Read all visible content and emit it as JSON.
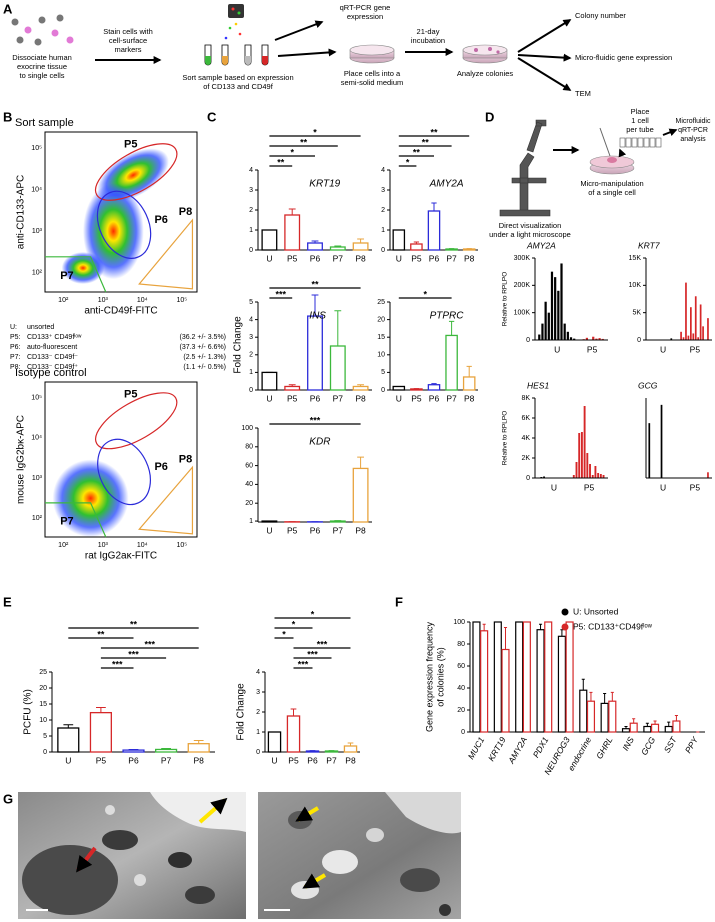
{
  "panel_labels": {
    "a": "A",
    "b": "B",
    "c": "C",
    "d": "D",
    "e": "E",
    "f": "F",
    "g": "G"
  },
  "schematic_a": {
    "dissociate": [
      "Dissociate human",
      "exocrine tissue",
      "to single cells"
    ],
    "stain": [
      "Stain cells with",
      "cell-surface",
      "markers"
    ],
    "sort": [
      "Sort sample based on expression",
      "of CD133 and CD49f"
    ],
    "qrt_pcr": [
      "qRT-PCR gene",
      "expression"
    ],
    "plate": [
      "Place cells into a",
      "semi-solid medium"
    ],
    "incubation": [
      "21-day",
      "incubation"
    ],
    "analyze": "Analyze colonies",
    "outputs": [
      "Colony number",
      "Micro-fluidic gene expression",
      "TEM"
    ]
  },
  "flow": {
    "sort_title": "Sort sample",
    "sort_y_label": "anti-CD133-APC",
    "sort_x_label": "anti-CD49f-FITC",
    "isotype_title": "Isotype control",
    "isotype_y_label": "mouse IgG2bκ-APC",
    "isotype_x_label": "rat IgG2aκ-FITC",
    "gates": [
      {
        "label": "P5",
        "color": "#d62728"
      },
      {
        "label": "P6",
        "color": "#2b2bd9"
      },
      {
        "label": "P7",
        "color": "#3cb83c"
      },
      {
        "label": "P8",
        "color": "#e8a33d"
      }
    ],
    "ticks": [
      "10²",
      "10³",
      "10⁴",
      "10⁵"
    ],
    "legend": [
      {
        "key": "U:",
        "desc": "unsorted",
        "color": "#000000"
      },
      {
        "key": "P5:",
        "desc": "CD133⁺ CD49fˡᵒʷ",
        "pct": "(36.2 +/- 3.5%)",
        "color": "#d62728"
      },
      {
        "key": "P6:",
        "desc": "auto-fluorescent",
        "pct": "(37.3 +/- 6.6%)",
        "color": "#2b2bd9"
      },
      {
        "key": "P7:",
        "desc": "CD133⁻ CD49f⁻",
        "pct": "(2.5 +/- 1.3%)",
        "color": "#3cb83c"
      },
      {
        "key": "P8:",
        "desc": "CD133⁻ CD49f⁺",
        "pct": "(1.1 +/- 0.5%)",
        "color": "#e8a33d"
      }
    ]
  },
  "schematic_d": {
    "place": [
      "Place",
      "1 cell",
      "per tube"
    ],
    "analysis": [
      "Microfluidic",
      "qRT-PCR",
      "analysis"
    ],
    "micromanip": [
      "Micro-manipulation",
      "of a single cell"
    ],
    "visualize": [
      "Direct visualization",
      "under a light microscope"
    ]
  },
  "fold_change_label": "Fold Change",
  "chart_data": [
    {
      "type": "bar",
      "title": "KRT19",
      "categories": [
        "U",
        "P5",
        "P6",
        "P7",
        "P8"
      ],
      "colors": [
        "#000000",
        "#d62728",
        "#2b2bd9",
        "#3cb83c",
        "#e8a33d"
      ],
      "values": [
        1,
        1.75,
        0.35,
        0.15,
        0.35
      ],
      "errors": [
        0,
        0.3,
        0.1,
        0.05,
        0.2
      ],
      "ylim": [
        0,
        4
      ],
      "yticks": [
        0,
        1,
        2,
        3,
        4
      ],
      "significance": [
        {
          "label": "**",
          "between": [
            "U",
            "P5"
          ]
        },
        {
          "label": "*",
          "between": [
            "U",
            "P6"
          ]
        },
        {
          "label": "**",
          "between": [
            "U",
            "P7"
          ]
        },
        {
          "label": "*",
          "between": [
            "U",
            "P8"
          ]
        }
      ]
    },
    {
      "type": "bar",
      "title": "AMY2A",
      "categories": [
        "U",
        "P5",
        "P6",
        "P7",
        "P8"
      ],
      "colors": [
        "#000000",
        "#d62728",
        "#2b2bd9",
        "#3cb83c",
        "#e8a33d"
      ],
      "values": [
        1,
        0.3,
        1.95,
        0.05,
        0.05
      ],
      "errors": [
        0,
        0.1,
        0.4,
        0.02,
        0.02
      ],
      "ylim": [
        0,
        4
      ],
      "yticks": [
        0,
        1,
        2,
        3,
        4
      ],
      "significance": [
        {
          "label": "*",
          "between": [
            "U",
            "P5"
          ]
        },
        {
          "label": "**",
          "between": [
            "U",
            "P6"
          ]
        },
        {
          "label": "**",
          "between": [
            "U",
            "P7"
          ]
        },
        {
          "label": "**",
          "between": [
            "U",
            "P8"
          ]
        }
      ]
    },
    {
      "type": "bar",
      "title": "INS",
      "categories": [
        "U",
        "P5",
        "P6",
        "P7",
        "P8"
      ],
      "colors": [
        "#000000",
        "#d62728",
        "#2b2bd9",
        "#3cb83c",
        "#e8a33d"
      ],
      "values": [
        1,
        0.2,
        4.2,
        2.5,
        0.2
      ],
      "errors": [
        0,
        0.1,
        1.2,
        2,
        0.1
      ],
      "ylim": [
        0,
        5
      ],
      "yticks": [
        0,
        1,
        2,
        3,
        4,
        5
      ],
      "significance": [
        {
          "label": "***",
          "between": [
            "U",
            "P5"
          ]
        },
        {
          "label": "**",
          "between": [
            "U",
            "P8"
          ]
        }
      ]
    },
    {
      "type": "bar",
      "title": "PTPRC",
      "categories": [
        "U",
        "P5",
        "P6",
        "P7",
        "P8"
      ],
      "colors": [
        "#000000",
        "#d62728",
        "#2b2bd9",
        "#3cb83c",
        "#e8a33d"
      ],
      "values": [
        1,
        0.3,
        1.5,
        15.5,
        3.7
      ],
      "errors": [
        0,
        0.1,
        0.3,
        4,
        3
      ],
      "ylim": [
        0,
        25
      ],
      "yticks": [
        0,
        5,
        10,
        15,
        20,
        25
      ],
      "significance": [
        {
          "label": "*",
          "between": [
            "U",
            "P7"
          ]
        }
      ]
    },
    {
      "type": "bar",
      "title": "KDR",
      "categories": [
        "U",
        "P5",
        "P6",
        "P7",
        "P8"
      ],
      "colors": [
        "#000000",
        "#d62728",
        "#2b2bd9",
        "#3cb83c",
        "#e8a33d"
      ],
      "values": [
        1,
        0.2,
        0.2,
        1,
        57
      ],
      "errors": [
        0,
        0.1,
        0.1,
        0.5,
        12
      ],
      "ylim": [
        0,
        100
      ],
      "yticks": [
        1,
        20,
        40,
        60,
        80,
        100
      ],
      "significance": [
        {
          "label": "***",
          "between": [
            "U",
            "P8"
          ]
        }
      ]
    },
    {
      "type": "single_cell_bar",
      "title": "AMY2A",
      "y_label": "Relative to RPLPO",
      "groups": [
        {
          "name": "U",
          "color": "#000000",
          "values": [
            20000,
            60000,
            140000,
            100000,
            250000,
            230000,
            180000,
            280000,
            60000,
            30000,
            10000,
            5000
          ]
        },
        {
          "name": "P5",
          "color": "#d62728",
          "values": [
            0,
            3000,
            8000,
            0,
            12000,
            5000,
            7000,
            4000
          ]
        }
      ],
      "ylim": [
        0,
        300000
      ],
      "yticks": [
        0,
        {
          "value": 100000,
          "label": "100K"
        },
        {
          "value": 200000,
          "label": "200K"
        },
        {
          "value": 300000,
          "label": "300K"
        }
      ]
    },
    {
      "type": "single_cell_bar",
      "title": "KRT7",
      "groups": [
        {
          "name": "U",
          "color": "#000000",
          "values": [
            0,
            0,
            0,
            0,
            0,
            0,
            0,
            0,
            0,
            300,
            0,
            0
          ]
        },
        {
          "name": "P5",
          "color": "#d62728",
          "values": [
            1500,
            500,
            10500,
            800,
            6000,
            1200,
            8000,
            500,
            6500,
            2500,
            0,
            4000
          ]
        }
      ],
      "ylim": [
        0,
        15000
      ],
      "yticks": [
        0,
        {
          "value": 5000,
          "label": "5K"
        },
        {
          "value": 10000,
          "label": "10K"
        },
        {
          "value": 15000,
          "label": "15K"
        }
      ]
    },
    {
      "type": "single_cell_bar",
      "title": "HES1",
      "y_label": "Relative to RPLPO",
      "groups": [
        {
          "name": "U",
          "color": "#000000",
          "values": [
            0,
            100,
            150,
            0,
            0,
            0,
            0,
            0,
            0,
            0,
            0,
            0
          ]
        },
        {
          "name": "P5",
          "color": "#d62728",
          "values": [
            300,
            1600,
            4500,
            4600,
            7200,
            2500,
            1400,
            300,
            1200,
            500,
            400,
            300
          ]
        }
      ],
      "ylim": [
        0,
        8000
      ],
      "yticks": [
        0,
        {
          "value": 2000,
          "label": "2K"
        },
        {
          "value": 4000,
          "label": "4K"
        },
        {
          "value": 6000,
          "label": "6K"
        },
        {
          "value": 8000,
          "label": "8K"
        }
      ]
    },
    {
      "type": "single_cell_bar",
      "title": "GCG",
      "groups": [
        {
          "name": "U",
          "color": "#000000",
          "values": [
            480,
            0,
            0,
            0,
            0,
            640,
            0,
            0,
            0,
            0,
            0,
            0
          ]
        },
        {
          "name": "P5",
          "color": "#d62728",
          "values": [
            0,
            0,
            0,
            0,
            0,
            0,
            0,
            0,
            0,
            0,
            0,
            50
          ]
        }
      ],
      "ylim": [
        0,
        700
      ]
    },
    {
      "type": "bar",
      "y_label": "PCFU (%)",
      "categories": [
        "U",
        "P5",
        "P6",
        "P7",
        "P8"
      ],
      "colors": [
        "#000000",
        "#d62728",
        "#2b2bd9",
        "#3cb83c",
        "#e8a33d"
      ],
      "values": [
        7.5,
        12.3,
        0.6,
        0.8,
        2.6
      ],
      "errors": [
        1,
        1.6,
        0.2,
        0.3,
        1
      ],
      "ylim": [
        0,
        25
      ],
      "yticks": [
        0,
        5,
        10,
        15,
        20,
        25
      ],
      "significance": [
        {
          "label": "***",
          "between": [
            "P5",
            "P6"
          ]
        },
        {
          "label": "***",
          "between": [
            "P5",
            "P7"
          ]
        },
        {
          "label": "***",
          "between": [
            "P5",
            "P8"
          ]
        },
        {
          "label": "**",
          "between": [
            "U",
            "P6"
          ]
        },
        {
          "label": "**",
          "between": [
            "U",
            "P8"
          ]
        }
      ]
    },
    {
      "type": "bar",
      "y_label": "Fold Change",
      "categories": [
        "U",
        "P5",
        "P6",
        "P7",
        "P8"
      ],
      "colors": [
        "#000000",
        "#d62728",
        "#2b2bd9",
        "#3cb83c",
        "#e8a33d"
      ],
      "values": [
        1,
        1.8,
        0.05,
        0.05,
        0.3
      ],
      "errors": [
        0,
        0.35,
        0.02,
        0.02,
        0.15
      ],
      "ylim": [
        0,
        4
      ],
      "yticks": [
        0,
        1,
        2,
        3,
        4
      ],
      "significance": [
        {
          "label": "***",
          "between": [
            "P5",
            "P6"
          ]
        },
        {
          "label": "***",
          "between": [
            "P5",
            "P7"
          ]
        },
        {
          "label": "***",
          "between": [
            "P5",
            "P8"
          ]
        },
        {
          "label": "*",
          "between": [
            "U",
            "P5"
          ]
        },
        {
          "label": "*",
          "between": [
            "U",
            "P6"
          ]
        },
        {
          "label": "*",
          "between": [
            "U",
            "P8"
          ]
        }
      ]
    },
    {
      "type": "grouped_bar",
      "y_label": [
        "Gene expression frequency",
        "of colonies (%)"
      ],
      "categories": [
        "MUC1",
        "KRT19",
        "AMY2A",
        "PDX1",
        "NEUROG3",
        "endocrine",
        "GHRL",
        "INS",
        "GCG",
        "SST",
        "PPY"
      ],
      "series": [
        {
          "name": "U: Unsorted",
          "color": "#000000",
          "values": [
            100,
            100,
            100,
            93,
            87,
            38,
            26,
            3,
            5,
            5,
            0
          ],
          "errors": [
            0,
            0,
            0,
            5,
            6,
            10,
            9,
            2,
            3,
            4,
            0
          ]
        },
        {
          "name": "P5: CD133⁺CD49fˡᵒʷ",
          "color": "#d62728",
          "values": [
            92,
            75,
            100,
            100,
            100,
            28,
            28,
            8,
            7,
            10,
            0
          ],
          "errors": [
            6,
            20,
            0,
            0,
            0,
            8,
            8,
            4,
            3,
            5,
            0
          ]
        }
      ],
      "ylim": [
        0,
        100
      ],
      "yticks": [
        0,
        20,
        40,
        60,
        80,
        100
      ],
      "legend": "top-right"
    }
  ]
}
